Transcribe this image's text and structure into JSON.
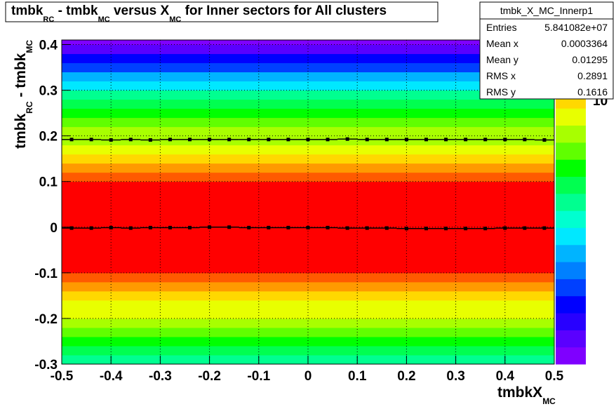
{
  "chart_data": {
    "type": "heatmap",
    "title": [
      "tmbk",
      "RC",
      " - tmbk",
      "MC",
      " versus X",
      "MC",
      " for Inner sectors for All clusters"
    ],
    "xlabel": [
      "tmbkX",
      "MC"
    ],
    "ylabel": [
      "tmbk",
      "RC",
      " - tmbk",
      "MC"
    ],
    "z_exponent": {
      "base": "10",
      "power": "4"
    },
    "xlim": [
      -0.5,
      0.5
    ],
    "xticks": [
      -0.5,
      -0.4,
      -0.3,
      -0.2,
      -0.1,
      0,
      0.1,
      0.2,
      0.3,
      0.4,
      0.5
    ],
    "ylim": [
      -0.3,
      0.41
    ],
    "yticks": [
      -0.3,
      -0.2,
      -0.1,
      0,
      0.1,
      0.2,
      0.3,
      0.4
    ],
    "grid": true,
    "zlim": [
      0,
      4.75
    ],
    "palette": [
      "#7f00ff",
      "#5a00ff",
      "#2800ff",
      "#0000ff",
      "#0040ff",
      "#0080ff",
      "#00b4ff",
      "#00e8ff",
      "#00ffd0",
      "#00ff90",
      "#00ff50",
      "#00ff00",
      "#60ff00",
      "#a8ff00",
      "#e8ff00",
      "#ffd800",
      "#ff9a00",
      "#ff5a00",
      "#ff0000"
    ],
    "y_bins": [
      -0.3,
      -0.28,
      -0.26,
      -0.24,
      -0.22,
      -0.2,
      -0.18,
      -0.16,
      -0.14,
      -0.12,
      -0.1,
      -0.08,
      -0.06,
      -0.04,
      -0.02,
      0,
      0.02,
      0.04,
      0.06,
      0.08,
      0.1,
      0.12,
      0.14,
      0.16,
      0.18,
      0.2,
      0.22,
      0.24,
      0.26,
      0.28,
      0.3,
      0.32,
      0.34,
      0.36,
      0.38,
      0.4,
      0.41
    ],
    "z_values": [
      2.35,
      2.6,
      2.85,
      3.1,
      3.35,
      3.6,
      3.65,
      3.85,
      4.1,
      4.35,
      4.6,
      4.65,
      4.7,
      4.7,
      4.7,
      4.7,
      4.7,
      4.7,
      4.65,
      4.6,
      4.4,
      4.15,
      3.9,
      3.65,
      3.4,
      3.3,
      3.05,
      2.8,
      2.55,
      2.3,
      1.85,
      1.6,
      1.1,
      0.85,
      0.35,
      0.1
    ],
    "x": [
      -0.48,
      -0.44,
      -0.4,
      -0.36,
      -0.32,
      -0.28,
      -0.24,
      -0.2,
      -0.16,
      -0.12,
      -0.08,
      -0.04,
      0,
      0.04,
      0.08,
      0.12,
      0.16,
      0.2,
      0.24,
      0.28,
      0.32,
      0.36,
      0.4,
      0.44,
      0.48
    ],
    "series": [
      {
        "color": "#000000",
        "values": [
          -0.002,
          -0.002,
          -0.001,
          -0.002,
          -0.001,
          -0.001,
          -0.001,
          0,
          0,
          -0.001,
          -0.001,
          -0.001,
          -0.001,
          -0.001,
          -0.002,
          -0.002,
          -0.002,
          -0.003,
          -0.003,
          -0.003,
          -0.003,
          -0.003,
          -0.002,
          -0.002,
          -0.002
        ]
      },
      {
        "color": "#000000",
        "values": [
          0.192,
          0.192,
          0.191,
          0.192,
          0.191,
          0.192,
          0.192,
          0.192,
          0.192,
          0.192,
          0.192,
          0.192,
          0.192,
          0.192,
          0.193,
          0.192,
          0.192,
          0.192,
          0.192,
          0.192,
          0.192,
          0.192,
          0.192,
          0.192,
          0.191
        ]
      }
    ],
    "stats": {
      "name": "tmbk_X_MC_Innerp1",
      "rows": [
        [
          "Entries",
          "5.841082e+07"
        ],
        [
          "Mean x",
          "0.0003364"
        ],
        [
          "Mean y",
          "0.01295"
        ],
        [
          "RMS x",
          "0.2891"
        ],
        [
          "RMS y",
          "0.1616"
        ]
      ]
    }
  }
}
